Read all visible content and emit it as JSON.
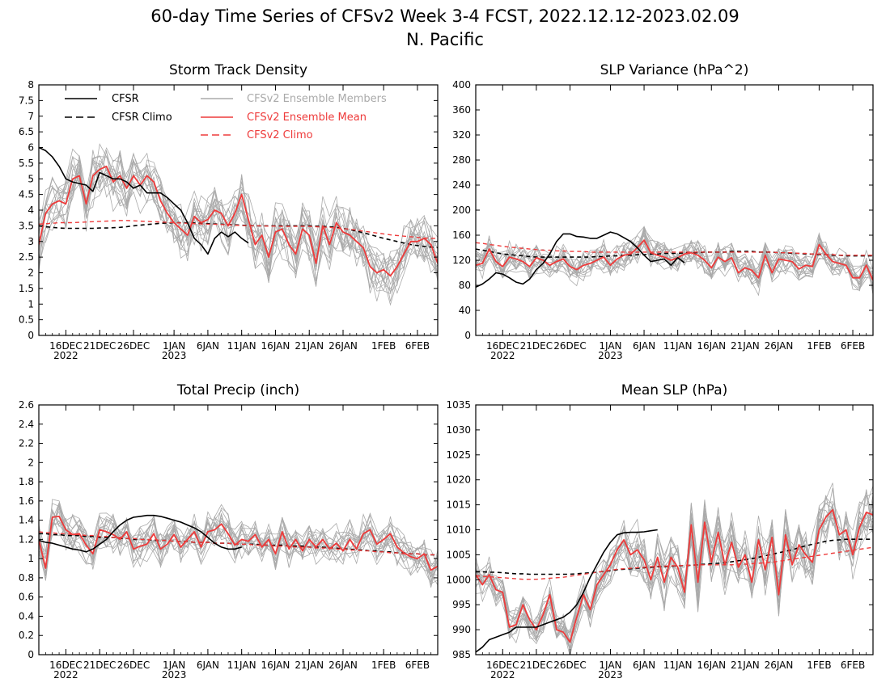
{
  "figure": {
    "title_line1": "60-day Time Series of CFSv2 Week 3-4 FCST, 2022.12.12-2023.02.09",
    "title_line2": "N. Pacific"
  },
  "colors": {
    "cfsr": "#000000",
    "cfsr_climo": "#000000",
    "members": "#aaaaaa",
    "ens_mean": "#ee3b3b",
    "cfsv2_climo": "#ee3b3b"
  },
  "legend": {
    "cfsr": "CFSR",
    "cfsr_climo": "CFSR Climo",
    "members": "CFSv2 Ensemble Members",
    "ens_mean": "CFSv2 Ensemble Mean",
    "cfsv2_climo": "CFSv2 Climo"
  },
  "x_axis": {
    "tick_labels": [
      "16DEC",
      "21DEC",
      "26DEC",
      "1JAN",
      "6JAN",
      "11JAN",
      "16JAN",
      "21JAN",
      "26JAN",
      "1FEB",
      "6FEB"
    ],
    "tick_days": [
      4,
      9,
      14,
      20,
      25,
      30,
      35,
      40,
      45,
      51,
      56
    ],
    "year_labels": [
      {
        "day": 4,
        "label": "2022"
      },
      {
        "day": 20,
        "label": "2023"
      }
    ],
    "n_days": 60
  },
  "chart_data": [
    {
      "type": "line",
      "title": "Storm Track Density",
      "x_range": [
        0,
        59
      ],
      "ylim": [
        0,
        8
      ],
      "yticks": [
        "0",
        "0.5",
        "1",
        "1.5",
        "2",
        "2.5",
        "3",
        "3.5",
        "4",
        "4.5",
        "5",
        "5.5",
        "6",
        "6.5",
        "7",
        "7.5",
        "8"
      ],
      "legend_placement": "top",
      "series": [
        {
          "key": "cfsr",
          "x_start": 0,
          "values": [
            6.0,
            5.9,
            5.7,
            5.4,
            5.0,
            4.9,
            4.85,
            4.8,
            4.6,
            5.2,
            5.1,
            5.0,
            5.0,
            4.9,
            4.7,
            4.8,
            4.55,
            4.55,
            4.55,
            4.4,
            4.2,
            4.0,
            3.6,
            3.1,
            2.9,
            2.6,
            3.1,
            3.3,
            3.15,
            3.3,
            3.1,
            2.95
          ]
        },
        {
          "key": "cfsr_climo",
          "x_start": 0,
          "values": [
            3.5,
            3.47,
            3.45,
            3.43,
            3.42,
            3.42,
            3.42,
            3.42,
            3.42,
            3.43,
            3.43,
            3.44,
            3.45,
            3.47,
            3.5,
            3.52,
            3.54,
            3.56,
            3.58,
            3.59,
            3.6,
            3.6,
            3.6,
            3.59,
            3.58,
            3.57,
            3.56,
            3.55,
            3.54,
            3.53,
            3.52,
            3.51,
            3.5,
            3.5,
            3.5,
            3.5,
            3.5,
            3.5,
            3.5,
            3.5,
            3.5,
            3.49,
            3.48,
            3.47,
            3.45,
            3.42,
            3.38,
            3.33,
            3.28,
            3.22,
            3.16,
            3.1,
            3.05,
            3.0,
            2.95,
            2.9,
            2.87,
            2.84,
            2.82,
            2.8
          ]
        },
        {
          "key": "cfsv2_climo",
          "x_start": 0,
          "values": [
            3.55,
            3.57,
            3.58,
            3.6,
            3.6,
            3.6,
            3.61,
            3.62,
            3.63,
            3.64,
            3.65,
            3.66,
            3.67,
            3.67,
            3.66,
            3.65,
            3.64,
            3.63,
            3.62,
            3.61,
            3.6,
            3.59,
            3.58,
            3.57,
            3.56,
            3.55,
            3.55,
            3.54,
            3.53,
            3.52,
            3.51,
            3.5,
            3.5,
            3.5,
            3.49,
            3.49,
            3.48,
            3.48,
            3.48,
            3.48,
            3.48,
            3.47,
            3.46,
            3.45,
            3.43,
            3.41,
            3.39,
            3.36,
            3.33,
            3.3,
            3.27,
            3.24,
            3.21,
            3.19,
            3.17,
            3.15,
            3.13,
            3.11,
            3.1,
            3.1
          ]
        },
        {
          "key": "ens_mean",
          "x_start": 0,
          "values": [
            2.9,
            3.9,
            4.2,
            4.3,
            4.2,
            5.0,
            5.1,
            4.2,
            5.1,
            5.3,
            5.4,
            4.9,
            5.1,
            4.7,
            5.1,
            4.8,
            5.1,
            4.9,
            4.3,
            3.9,
            3.6,
            3.4,
            3.2,
            3.8,
            3.6,
            3.7,
            4.0,
            3.9,
            3.5,
            3.9,
            4.5,
            3.7,
            2.9,
            3.2,
            2.5,
            3.3,
            3.4,
            2.9,
            2.6,
            3.4,
            3.2,
            2.3,
            3.5,
            2.9,
            3.6,
            3.3,
            3.2,
            3.0,
            2.8,
            2.2,
            2.0,
            2.1,
            1.9,
            2.2,
            2.6,
            3.0,
            3.0,
            3.1,
            2.9,
            2.3
          ]
        }
      ]
    },
    {
      "type": "line",
      "title": "SLP Variance (hPa^2)",
      "x_range": [
        0,
        59
      ],
      "ylim": [
        0,
        400
      ],
      "yticks": [
        "0",
        "40",
        "80",
        "120",
        "160",
        "200",
        "240",
        "280",
        "320",
        "360",
        "400"
      ],
      "series": [
        {
          "key": "cfsr",
          "x_start": 0,
          "values": [
            77,
            82,
            90,
            100,
            98,
            92,
            85,
            82,
            90,
            105,
            115,
            130,
            150,
            162,
            162,
            158,
            157,
            155,
            155,
            160,
            165,
            162,
            156,
            150,
            140,
            128,
            118,
            120,
            122,
            112,
            124,
            116
          ]
        },
        {
          "key": "cfsr_climo",
          "x_start": 0,
          "values": [
            138,
            136,
            134,
            132,
            130,
            129,
            128,
            127,
            126,
            125,
            125,
            125,
            125,
            125,
            125,
            125,
            125,
            125,
            126,
            126,
            127,
            127,
            128,
            128,
            129,
            129,
            130,
            130,
            131,
            131,
            131,
            132,
            132,
            132,
            133,
            133,
            133,
            133,
            134,
            134,
            134,
            134,
            133,
            133,
            133,
            132,
            132,
            131,
            131,
            130,
            130,
            129,
            129,
            128,
            128,
            127,
            127,
            127,
            127,
            127
          ]
        },
        {
          "key": "cfsv2_climo",
          "x_start": 0,
          "values": [
            148,
            147,
            145,
            144,
            142,
            141,
            140,
            139,
            138,
            137,
            136,
            136,
            135,
            135,
            134,
            134,
            134,
            133,
            133,
            133,
            133,
            133,
            133,
            133,
            133,
            133,
            133,
            133,
            133,
            133,
            133,
            133,
            133,
            133,
            133,
            133,
            133,
            133,
            133,
            133,
            133,
            133,
            133,
            133,
            133,
            132,
            132,
            132,
            131,
            131,
            130,
            130,
            129,
            129,
            128,
            128,
            128,
            128,
            128,
            128
          ]
        },
        {
          "key": "ens_mean",
          "x_start": 0,
          "values": [
            112,
            115,
            138,
            118,
            110,
            125,
            122,
            118,
            110,
            124,
            120,
            112,
            118,
            122,
            110,
            105,
            112,
            115,
            120,
            125,
            112,
            122,
            128,
            130,
            140,
            152,
            132,
            128,
            125,
            120,
            124,
            130,
            132,
            128,
            120,
            108,
            125,
            118,
            124,
            100,
            108,
            104,
            92,
            128,
            100,
            122,
            120,
            118,
            106,
            112,
            110,
            145,
            130,
            118,
            115,
            112,
            92,
            92,
            112,
            88
          ]
        }
      ]
    },
    {
      "type": "line",
      "title": "Total Precip (inch)",
      "x_range": [
        0,
        59
      ],
      "ylim": [
        0,
        2.6
      ],
      "yticks": [
        "0",
        "0.2",
        "0.4",
        "0.6",
        "0.8",
        "1",
        "1.2",
        "1.4",
        "1.6",
        "1.8",
        "2",
        "2.2",
        "2.4",
        "2.6"
      ],
      "series": [
        {
          "key": "cfsr",
          "x_start": 0,
          "values": [
            1.19,
            1.17,
            1.16,
            1.14,
            1.12,
            1.1,
            1.09,
            1.07,
            1.1,
            1.15,
            1.2,
            1.28,
            1.35,
            1.4,
            1.43,
            1.44,
            1.45,
            1.45,
            1.44,
            1.42,
            1.4,
            1.38,
            1.35,
            1.32,
            1.28,
            1.22,
            1.16,
            1.12,
            1.1,
            1.1,
            1.12
          ]
        },
        {
          "key": "cfsr_climo",
          "x_start": 0,
          "values": [
            1.26,
            1.26,
            1.25,
            1.25,
            1.24,
            1.24,
            1.24,
            1.23,
            1.23,
            1.22,
            1.22,
            1.22,
            1.21,
            1.21,
            1.2,
            1.2,
            1.2,
            1.19,
            1.19,
            1.19,
            1.18,
            1.18,
            1.18,
            1.17,
            1.17,
            1.17,
            1.16,
            1.16,
            1.16,
            1.15,
            1.15,
            1.15,
            1.15,
            1.14,
            1.14,
            1.14,
            1.14,
            1.13,
            1.13,
            1.13,
            1.12,
            1.12,
            1.12,
            1.11,
            1.11,
            1.1,
            1.1,
            1.09,
            1.09,
            1.08,
            1.08,
            1.07,
            1.07,
            1.06,
            1.06,
            1.05,
            1.05,
            1.04,
            1.04,
            1.04
          ]
        },
        {
          "key": "cfsv2_climo",
          "x_start": 0,
          "values": [
            1.28,
            1.27,
            1.27,
            1.26,
            1.26,
            1.25,
            1.25,
            1.24,
            1.24,
            1.23,
            1.23,
            1.22,
            1.22,
            1.21,
            1.21,
            1.2,
            1.2,
            1.2,
            1.19,
            1.19,
            1.18,
            1.18,
            1.18,
            1.17,
            1.17,
            1.17,
            1.16,
            1.16,
            1.16,
            1.15,
            1.15,
            1.15,
            1.14,
            1.14,
            1.14,
            1.13,
            1.13,
            1.13,
            1.12,
            1.12,
            1.12,
            1.11,
            1.11,
            1.11,
            1.1,
            1.1,
            1.09,
            1.09,
            1.08,
            1.08,
            1.07,
            1.07,
            1.06,
            1.06,
            1.05,
            1.05,
            1.05,
            1.04,
            1.04,
            1.04
          ]
        },
        {
          "key": "ens_mean",
          "x_start": 0,
          "values": [
            1.2,
            0.9,
            1.43,
            1.44,
            1.3,
            1.25,
            1.26,
            1.14,
            1.05,
            1.3,
            1.28,
            1.25,
            1.2,
            1.28,
            1.1,
            1.13,
            1.15,
            1.26,
            1.1,
            1.15,
            1.25,
            1.12,
            1.2,
            1.28,
            1.12,
            1.28,
            1.3,
            1.36,
            1.26,
            1.14,
            1.2,
            1.18,
            1.25,
            1.12,
            1.2,
            1.05,
            1.28,
            1.1,
            1.2,
            1.08,
            1.2,
            1.12,
            1.2,
            1.1,
            1.16,
            1.08,
            1.2,
            1.1,
            1.26,
            1.3,
            1.15,
            1.2,
            1.26,
            1.12,
            1.06,
            1.02,
            1.0,
            1.05,
            0.88,
            0.92
          ]
        }
      ]
    },
    {
      "type": "line",
      "title": "Mean SLP (hPa)",
      "x_range": [
        0,
        59
      ],
      "ylim": [
        985,
        1035
      ],
      "yticks": [
        "985",
        "990",
        "995",
        "1000",
        "1005",
        "1010",
        "1015",
        "1020",
        "1025",
        "1030",
        "1035"
      ],
      "series": [
        {
          "key": "cfsr",
          "x_start": 0,
          "values": [
            985.5,
            986.5,
            988,
            988.5,
            989,
            989.5,
            990.5,
            990.5,
            990.5,
            990.5,
            991,
            991.5,
            992,
            992.5,
            993.5,
            995,
            997.5,
            1000.5,
            1003,
            1005.5,
            1007.5,
            1009,
            1009.4,
            1009.5,
            1009.5,
            1009.6,
            1009.8,
            1010
          ]
        },
        {
          "key": "cfsr_climo",
          "x_start": 0,
          "values": [
            1001.6,
            1001.6,
            1001.5,
            1001.5,
            1001.4,
            1001.3,
            1001.2,
            1001.2,
            1001.1,
            1001.1,
            1001.1,
            1001.1,
            1001.1,
            1001.1,
            1001.1,
            1001.2,
            1001.3,
            1001.4,
            1001.5,
            1001.7,
            1001.8,
            1002,
            1002.1,
            1002.2,
            1002.3,
            1002.4,
            1002.5,
            1002.6,
            1002.6,
            1002.7,
            1002.8,
            1002.8,
            1002.9,
            1003,
            1003.1,
            1003.2,
            1003.3,
            1003.4,
            1003.6,
            1003.8,
            1004,
            1004.2,
            1004.5,
            1004.8,
            1005.1,
            1005.4,
            1005.7,
            1006,
            1006.4,
            1006.8,
            1007.1,
            1007.4,
            1007.7,
            1007.9,
            1008,
            1008.1,
            1008.1,
            1008.1,
            1008.1,
            1008.1
          ]
        },
        {
          "key": "cfsv2_climo",
          "x_start": 0,
          "values": [
            1000.8,
            1000.7,
            1000.6,
            1000.5,
            1000.4,
            1000.3,
            1000.2,
            1000.1,
            1000.1,
            1000.1,
            1000.2,
            1000.3,
            1000.4,
            1000.5,
            1000.7,
            1000.9,
            1001.1,
            1001.3,
            1001.5,
            1001.7,
            1001.9,
            1002.1,
            1002.2,
            1002.3,
            1002.4,
            1002.5,
            1002.6,
            1002.7,
            1002.7,
            1002.8,
            1002.8,
            1002.9,
            1002.9,
            1003,
            1003,
            1003,
            1003,
            1003,
            1003,
            1003.1,
            1003.1,
            1003.2,
            1003.3,
            1003.4,
            1003.5,
            1003.7,
            1003.9,
            1004.1,
            1004.3,
            1004.5,
            1004.7,
            1004.9,
            1005.1,
            1005.3,
            1005.5,
            1005.7,
            1005.9,
            1006.1,
            1006.3,
            1006.5
          ]
        },
        {
          "key": "ens_mean",
          "x_start": 0,
          "values": [
            1001,
            999,
            1001,
            998,
            997.5,
            990.5,
            991,
            995,
            992,
            990,
            993,
            997,
            990,
            989.5,
            987.5,
            992.5,
            997,
            994,
            999,
            1001,
            1003,
            1006,
            1008,
            1005,
            1006,
            1004,
            1000,
            1004.5,
            999.5,
            1004.5,
            1002.5,
            997.5,
            1011,
            999.5,
            1011.5,
            1003.5,
            1009.5,
            1003,
            1007.5,
            1002.5,
            1005,
            999.5,
            1008,
            1002,
            1008.5,
            997,
            1009,
            1003,
            1007,
            1005,
            1003.5,
            1010,
            1012.5,
            1014,
            1009,
            1010,
            1005,
            1010.5,
            1013.5,
            1013
          ]
        }
      ]
    }
  ]
}
